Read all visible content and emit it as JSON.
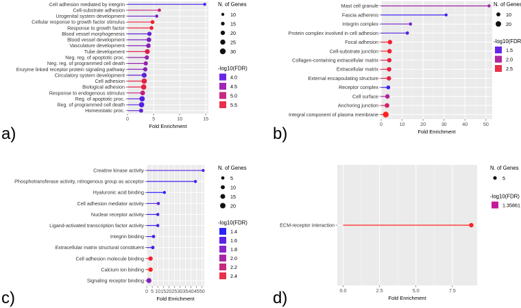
{
  "figure": {
    "layout": "2x2 panel grid of lollipop enrichment plots"
  },
  "chart_data": [
    {
      "type": "lollipop",
      "panel": "a)",
      "xlabel": "Fold Enrichment",
      "xlim": [
        0,
        15.5
      ],
      "xticks": [
        0,
        5,
        10,
        15
      ],
      "size_legend_title": "N. of Genes",
      "size_legend": [
        10,
        15,
        20,
        25,
        30
      ],
      "size_range": [
        10,
        30
      ],
      "color_legend_title": "-log10(FDR)",
      "color_legend": [
        {
          "label": "4.0",
          "color": "#6a24e6"
        },
        {
          "label": "4.5",
          "color": "#a126b8"
        },
        {
          "label": "5.0",
          "color": "#c52a7f"
        },
        {
          "label": "5.5",
          "color": "#e8304a"
        }
      ],
      "color_range": [
        3.8,
        5.8
      ],
      "categories": [
        "Cell adhesion mediated by integrin",
        "Cell-substrate adhesion",
        "Urogenital system development",
        "Cellular response to growth factor stimulus",
        "Response to growth factor",
        "Blood vessel morphogenesis",
        "Blood vessel development",
        "Vasculature development",
        "Tube development",
        "Neg. reg. of apoptotic proc.",
        "Neg. reg. of programmed cell death",
        "Enzyme linked receptor protein signaling pathway",
        "Circulatory system development",
        "Cell adhesion",
        "Biological adhesion",
        "Response to endogenous stimulus",
        "Reg. of apoptotic proc.",
        "Reg. of programmed cell death",
        "Homeostatic proc."
      ],
      "values": [
        14.8,
        6.1,
        5.6,
        4.8,
        4.6,
        4.2,
        4.1,
        4.0,
        3.8,
        3.7,
        3.5,
        3.4,
        3.2,
        3.2,
        3.1,
        2.9,
        2.8,
        2.7,
        2.6
      ],
      "genes": [
        10,
        12,
        11,
        16,
        16,
        19,
        22,
        21,
        24,
        19,
        19,
        20,
        24,
        27,
        27,
        23,
        27,
        27,
        18
      ],
      "fdr": [
        4.0,
        5.1,
        4.3,
        5.6,
        5.6,
        4.2,
        4.4,
        4.5,
        5.4,
        4.6,
        4.6,
        4.5,
        4.2,
        5.5,
        5.5,
        5.0,
        4.1,
        4.1,
        4.2
      ]
    },
    {
      "type": "lollipop",
      "panel": "b)",
      "xlabel": "Fold Enrichment",
      "xlim": [
        0,
        53
      ],
      "xticks": [
        0,
        10,
        20,
        30,
        40,
        50
      ],
      "size_legend_title": "N. of Genes",
      "size_legend": [
        10,
        20
      ],
      "size_range": [
        3,
        22
      ],
      "color_legend_title": "-log10(FDR)",
      "color_legend": [
        {
          "label": "1.5",
          "color": "#6a24e6"
        },
        {
          "label": "2.0",
          "color": "#b0279e"
        },
        {
          "label": "2.5",
          "color": "#e8304a"
        }
      ],
      "color_range": [
        1.3,
        2.7
      ],
      "categories": [
        "Mast cell granule",
        "Fascia adherens",
        "Integrin complex",
        "Protein complex involved in cell adhesion",
        "Focal adhesion",
        "Cell-substrate junction",
        "Collagen-containing extracellular matrix",
        "Extracellular matrix",
        "External encapsulating structure",
        "Receptor complex",
        "Cell surface",
        "Anchoring junction",
        "Integral component of plasma membrane"
      ],
      "values": [
        51.5,
        31,
        14,
        12.5,
        4.2,
        4.0,
        3.9,
        3.8,
        3.7,
        3.4,
        3.0,
        2.8,
        2.2
      ],
      "genes": [
        3,
        3,
        4,
        5,
        13,
        13,
        13,
        13,
        13,
        9,
        13,
        14,
        22
      ],
      "fdr": [
        1.9,
        1.4,
        1.7,
        1.5,
        2.6,
        2.6,
        2.5,
        2.5,
        2.5,
        1.4,
        2.0,
        2.3,
        2.7
      ]
    },
    {
      "type": "lollipop",
      "panel": "c)",
      "xlabel": "Fold Enrichment",
      "xlim": [
        0,
        52
      ],
      "xticks": [
        0,
        5,
        10,
        15,
        20,
        25,
        30,
        35,
        40,
        45,
        50
      ],
      "size_legend_title": "N. of Genes",
      "size_legend": [
        5,
        10,
        15,
        20
      ],
      "size_range": [
        3,
        22
      ],
      "color_legend_title": "-log10(FDR)",
      "color_legend": [
        {
          "label": "1.4",
          "color": "#2a24f5"
        },
        {
          "label": "1.6",
          "color": "#5a24e6"
        },
        {
          "label": "1.8",
          "color": "#8a25cc"
        },
        {
          "label": "2.0",
          "color": "#a826a6"
        },
        {
          "label": "2.2",
          "color": "#c52a7f"
        },
        {
          "label": "2.4",
          "color": "#e8304a"
        }
      ],
      "color_range": [
        1.3,
        2.5
      ],
      "categories": [
        "Creatine kinase activity",
        "Phosphotransferase activity, nitrogenous group as acceptor",
        "Hyaluronic acid binding",
        "Cell adhesion mediator activity",
        "Nuclear receptor activity",
        "Ligand-activated transcription factor activity",
        "Integrin binding",
        "Extracellular matrix structural constituent",
        "Cell adhesion molecule binding",
        "Calcium ion binding",
        "Signaling receptor binding"
      ],
      "values": [
        51,
        44,
        16,
        10.5,
        10,
        10,
        6.2,
        5.5,
        3.5,
        3.5,
        2.0
      ],
      "genes": [
        3,
        3,
        3,
        4,
        4,
        4,
        5,
        6,
        12,
        12,
        17
      ],
      "fdr": [
        1.5,
        1.4,
        1.3,
        1.5,
        1.4,
        1.4,
        1.4,
        1.4,
        2.4,
        2.5,
        1.7
      ]
    },
    {
      "type": "lollipop",
      "panel": "d)",
      "xlabel": "Fold Enrichment",
      "xlim": [
        -0.4,
        9.2
      ],
      "xticks": [
        0.0,
        2.5,
        5.0,
        7.5
      ],
      "xtick_labels": [
        "0.0",
        "2.5",
        "5.0",
        "7.5"
      ],
      "size_legend_title": "N. of Genes",
      "size_legend": [
        5
      ],
      "size_range": [
        5,
        5
      ],
      "color_legend_title": "-log10(FDR)",
      "color_legend": [
        {
          "label": "1.35861",
          "color": "#c2199a"
        }
      ],
      "color_range": [
        1.35861,
        1.35861
      ],
      "categories": [
        "ECM-receptor interaction"
      ],
      "values": [
        8.8
      ],
      "genes": [
        5
      ],
      "fdr": [
        1.35861
      ]
    }
  ]
}
